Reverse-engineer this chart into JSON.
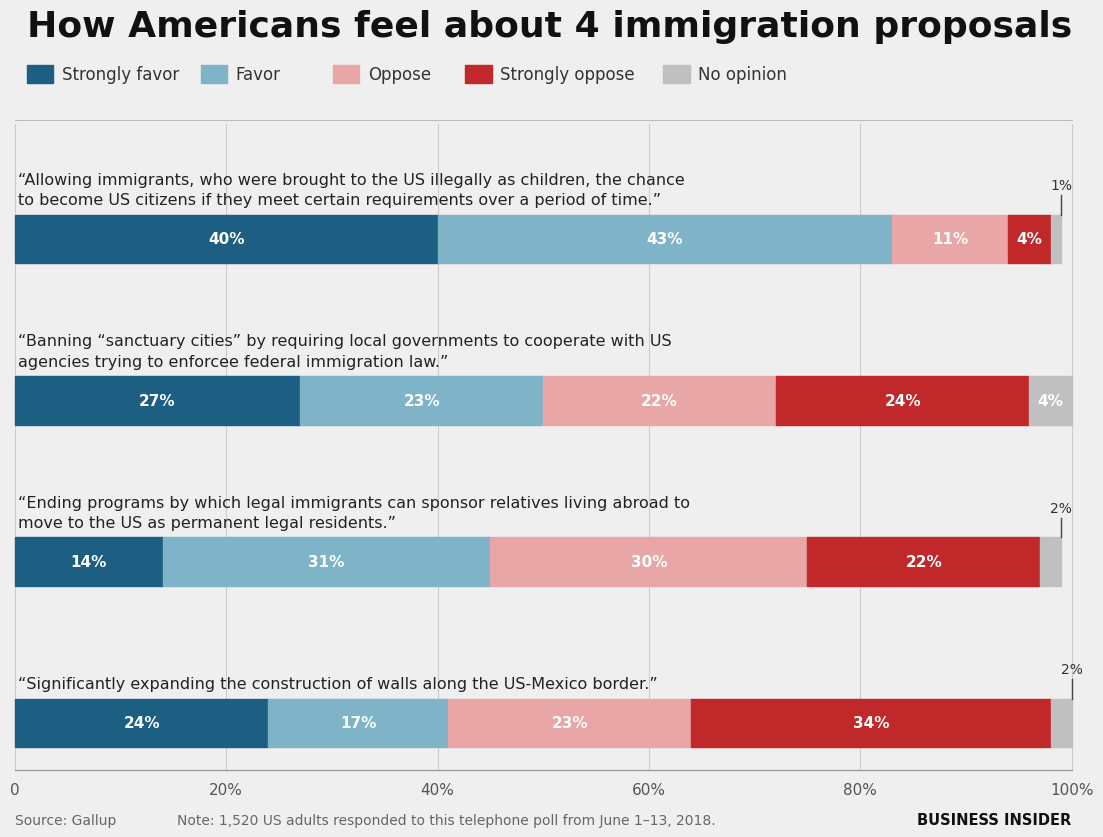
{
  "title": "How Americans feel about 4 immigration proposals",
  "background_color": "#efefef",
  "colors": {
    "strongly_favor": "#1c5f82",
    "favor": "#7fb3c8",
    "oppose": "#e8a6a6",
    "strongly_oppose": "#c0282a",
    "no_opinion": "#c0c0c0"
  },
  "legend_labels": [
    "Strongly favor",
    "Favor",
    "Oppose",
    "Strongly oppose",
    "No opinion"
  ],
  "proposals": [
    {
      "label": "“Allowing immigrants, who were brought to the US illegally as children, the chance\nto become US citizens if they meet certain requirements over a period of time.”",
      "values": [
        40,
        43,
        11,
        4,
        1
      ],
      "show_labels": [
        true,
        true,
        true,
        true,
        false
      ]
    },
    {
      "label": "“Banning “sanctuary cities” by requiring local governments to cooperate with US\nagencies trying to enforcee federal immigration law.”",
      "values": [
        27,
        23,
        22,
        24,
        4
      ],
      "show_labels": [
        true,
        true,
        true,
        true,
        true
      ]
    },
    {
      "label": "“Ending programs by which legal immigrants can sponsor relatives living abroad to\nmove to the US as permanent legal residents.”",
      "values": [
        14,
        31,
        30,
        22,
        2
      ],
      "show_labels": [
        true,
        true,
        true,
        true,
        false
      ]
    },
    {
      "label": "“Significantly expanding the construction of walls along the US-Mexico border.”",
      "values": [
        24,
        17,
        23,
        34,
        2
      ],
      "show_labels": [
        true,
        true,
        true,
        true,
        false
      ]
    }
  ],
  "footer_source": "Source: Gallup",
  "footer_note": "Note: 1,520 US adults responded to this telephone poll from June 1–13, 2018.",
  "footer_brand": "BUSINESS INSIDER",
  "xtick_labels": [
    "0",
    "20%",
    "40%",
    "60%",
    "80%",
    "100%"
  ],
  "xtick_values": [
    0,
    20,
    40,
    60,
    80,
    100
  ]
}
